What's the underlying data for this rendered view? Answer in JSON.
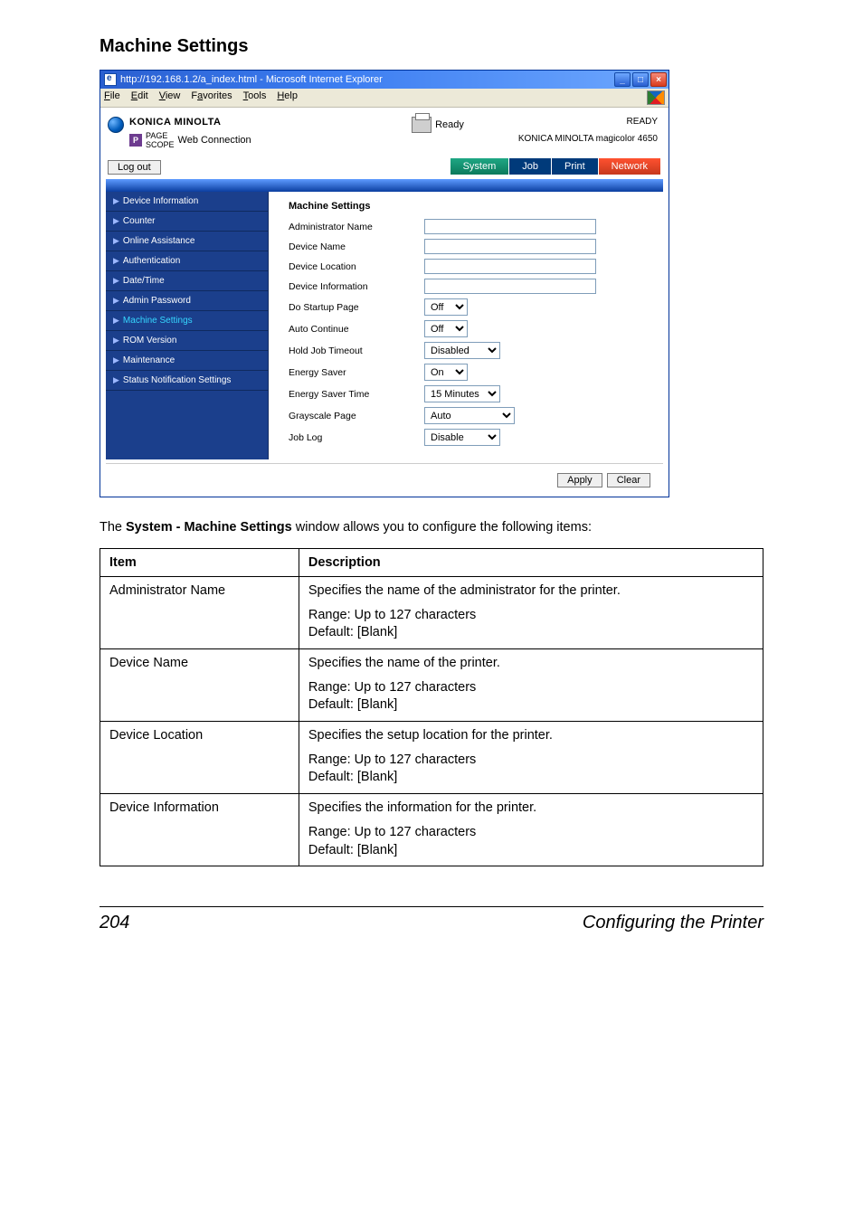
{
  "page": {
    "heading": "Machine Settings",
    "intro_prefix": "The ",
    "intro_bold": "System - Machine Settings",
    "intro_suffix": " window allows you to configure the following items:",
    "footer_page": "204",
    "footer_title": "Configuring the Printer"
  },
  "ie": {
    "title": "http://192.168.1.2/a_index.html - Microsoft Internet Explorer",
    "menu": [
      "File",
      "Edit",
      "View",
      "Favorites",
      "Tools",
      "Help"
    ],
    "brand_name": "KONICA MINOLTA",
    "pagescope_small": "PAGE\nSCOPE",
    "pagescope_label": "Web Connection",
    "status_ready_small": "Ready",
    "status_ready_big": "READY",
    "model": "KONICA MINOLTA magicolor 4650",
    "logout": "Log out",
    "tabs": [
      "System",
      "Job",
      "Print",
      "Network"
    ],
    "sidebar": [
      {
        "label": "Device Information",
        "active": false
      },
      {
        "label": "Counter",
        "active": false
      },
      {
        "label": "Online Assistance",
        "active": false
      },
      {
        "label": "Authentication",
        "active": false
      },
      {
        "label": "Date/Time",
        "active": false
      },
      {
        "label": "Admin Password",
        "active": false
      },
      {
        "label": "Machine Settings",
        "active": true
      },
      {
        "label": "ROM Version",
        "active": false
      },
      {
        "label": "Maintenance",
        "active": false
      },
      {
        "label": "Status Notification Settings",
        "active": false
      }
    ],
    "form": {
      "heading": "Machine Settings",
      "rows": {
        "admin_name": {
          "label": "Administrator Name",
          "type": "text",
          "value": ""
        },
        "device_name": {
          "label": "Device Name",
          "type": "text",
          "value": ""
        },
        "device_location": {
          "label": "Device Location",
          "type": "text",
          "value": ""
        },
        "device_info": {
          "label": "Device Information",
          "type": "text",
          "value": ""
        },
        "startup_page": {
          "label": "Do Startup Page",
          "type": "select",
          "value": "Off",
          "cls": "sel-s"
        },
        "auto_continue": {
          "label": "Auto Continue",
          "type": "select",
          "value": "Off",
          "cls": "sel-s"
        },
        "hold_job": {
          "label": "Hold Job Timeout",
          "type": "select",
          "value": "Disabled",
          "cls": "sel-m"
        },
        "energy_saver": {
          "label": "Energy Saver",
          "type": "select",
          "value": "On",
          "cls": "sel-s"
        },
        "energy_time": {
          "label": "Energy Saver Time",
          "type": "select",
          "value": "15 Minutes",
          "cls": "sel-m"
        },
        "grayscale": {
          "label": "Grayscale Page",
          "type": "select",
          "value": "Auto",
          "cls": "sel-w"
        },
        "job_log": {
          "label": "Job Log",
          "type": "select",
          "value": "Disable",
          "cls": "sel-m"
        }
      },
      "apply": "Apply",
      "clear": "Clear"
    }
  },
  "table": {
    "headers": {
      "item": "Item",
      "desc": "Description"
    },
    "rows": [
      {
        "item": "Administrator Name",
        "desc": "Specifies the name of the administrator for the printer.",
        "range": "Range:   Up to 127 characters",
        "default": "Default:  [Blank]"
      },
      {
        "item": "Device Name",
        "desc": "Specifies the name of the printer.",
        "range": "Range:   Up to 127 characters",
        "default": "Default:  [Blank]"
      },
      {
        "item": "Device Location",
        "desc": "Specifies the setup location for the printer.",
        "range": "Range:   Up to 127 characters",
        "default": "Default:  [Blank]"
      },
      {
        "item": "Device Information",
        "desc": "Specifies the information for the printer.",
        "range": "Range:   Up to 127 characters",
        "default": "Default:  [Blank]"
      }
    ]
  }
}
